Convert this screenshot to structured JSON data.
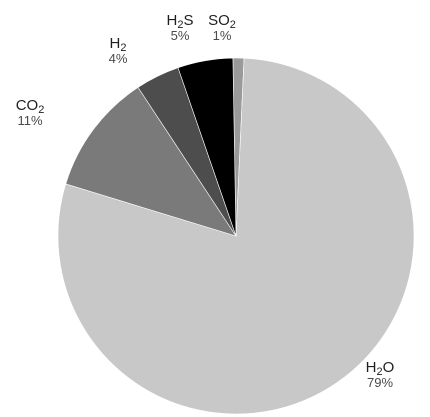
{
  "chart_data": {
    "type": "pie",
    "categories": [
      "H2O",
      "CO2",
      "H2",
      "H2S",
      "SO2"
    ],
    "values": [
      79,
      11,
      4,
      5,
      1
    ],
    "colors": [
      "#c8c8c8",
      "#7a7a7a",
      "#4d4d4d",
      "#000000",
      "#9a9a9a"
    ],
    "labels": [
      {
        "sub": [
          "H",
          "2",
          "O"
        ],
        "pct": "79%"
      },
      {
        "sub": [
          "CO",
          "2",
          ""
        ],
        "pct": "11%"
      },
      {
        "sub": [
          "H",
          "2",
          ""
        ],
        "pct": "4%"
      },
      {
        "sub": [
          "H",
          "2",
          "S"
        ],
        "pct": "5%"
      },
      {
        "sub": [
          "SO",
          "2",
          ""
        ],
        "pct": "1%"
      }
    ],
    "legend": "none",
    "grid": false
  }
}
